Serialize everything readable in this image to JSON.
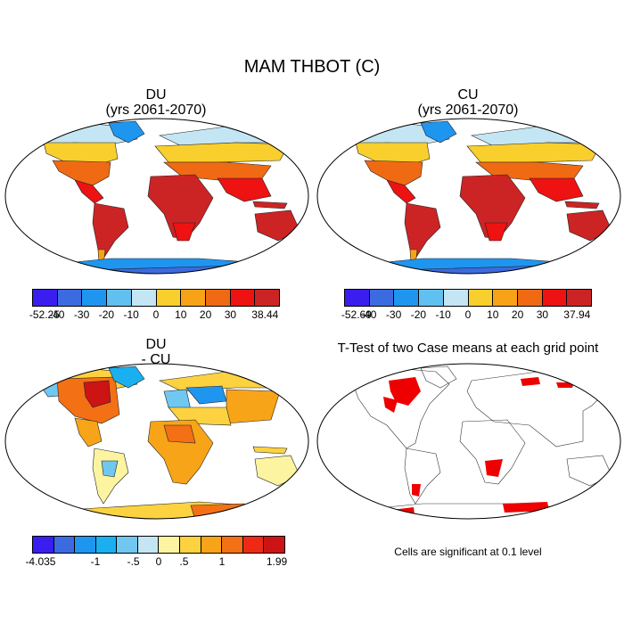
{
  "figure_title": "MAM THBOT (C)",
  "panels": [
    {
      "title_line1": "DU",
      "title_line2": "(yrs 2061-2070)"
    },
    {
      "title_line1": "CU",
      "title_line2": "(yrs 2061-2070)"
    },
    {
      "title_line1": "DU",
      "title_line2": "- CU"
    },
    {
      "title_line1": "T-Test of two Case means at each grid point",
      "title_line2": ""
    }
  ],
  "colorbars": [
    {
      "colors": [
        "#3a1ef0",
        "#3c6ae0",
        "#1e96f0",
        "#60c0f0",
        "#c4e6f4",
        "#f8cf2c",
        "#f8a218",
        "#f06a14",
        "#ee1212",
        "#cc2424"
      ],
      "labels": [
        "-52.25",
        "-40",
        "-30",
        "-20",
        "-10",
        "0",
        "10",
        "20",
        "30",
        "38.44"
      ]
    },
    {
      "colors": [
        "#3a1ef0",
        "#3c6ae0",
        "#1e96f0",
        "#60c0f0",
        "#c4e6f4",
        "#f8cf2c",
        "#f8a218",
        "#f06a14",
        "#ee1212",
        "#cc2424"
      ],
      "labels": [
        "-52.69",
        "-40",
        "-30",
        "-20",
        "-10",
        "0",
        "10",
        "20",
        "30",
        "37.94"
      ]
    },
    {
      "colors": [
        "#3a1ef0",
        "#3c6ae0",
        "#1e96f0",
        "#1ab0f0",
        "#70c8f0",
        "#c4e6f4",
        "#fcf4a0",
        "#fcd240",
        "#f8a418",
        "#f47014",
        "#ee2a14",
        "#cc1414"
      ],
      "labels": [
        "-4.035",
        "-1",
        "-.5",
        "0",
        ".5",
        "1",
        "1.99"
      ]
    }
  ],
  "footnote": "Cells are significant at 0.1 level",
  "colors": {
    "land_warm": "#ee1212",
    "land_hot": "#cc2424",
    "land_mid": "#f06a14",
    "land_cool": "#f8a218",
    "land_cold": "#c4e6f4",
    "ice": "#1e96f0",
    "signif": "#ee0000"
  }
}
